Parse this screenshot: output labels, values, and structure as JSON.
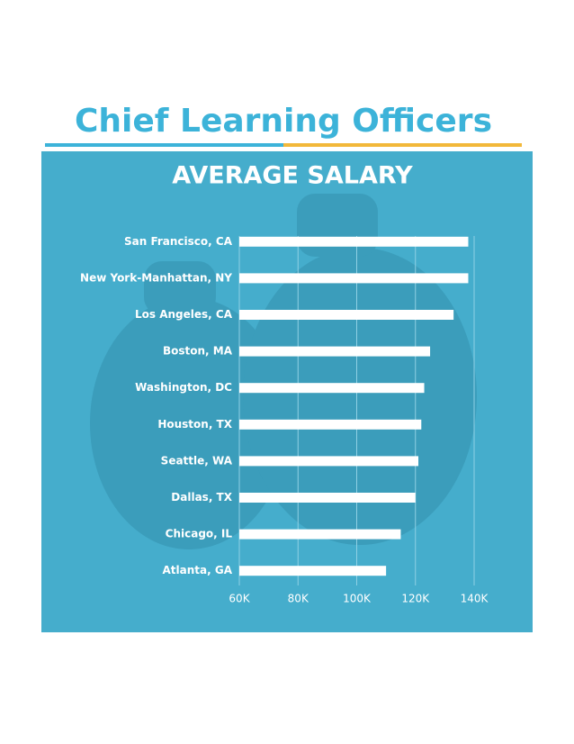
{
  "chart_data": {
    "type": "bar",
    "orientation": "horizontal",
    "title": "Chief Learning Officers",
    "subtitle": "AVERAGE SALARY",
    "categories": [
      "San Francisco, CA",
      "New York-Manhattan, NY",
      "Los Angeles, CA",
      "Boston, MA",
      "Washington, DC",
      "Houston, TX",
      "Seattle, WA",
      "Dallas, TX",
      "Chicago, IL",
      "Atlanta, GA"
    ],
    "values": [
      138000,
      138000,
      133000,
      125000,
      123000,
      122000,
      121000,
      120000,
      115000,
      110000
    ],
    "color": "#ffffff",
    "xlim": [
      60000,
      140000
    ],
    "xticks": [
      {
        "value": 60000,
        "label": "60K"
      },
      {
        "value": 80000,
        "label": "80K"
      },
      {
        "value": 100000,
        "label": "100K"
      },
      {
        "value": 120000,
        "label": "120K"
      },
      {
        "value": 140000,
        "label": "140K"
      }
    ],
    "grid": true
  }
}
